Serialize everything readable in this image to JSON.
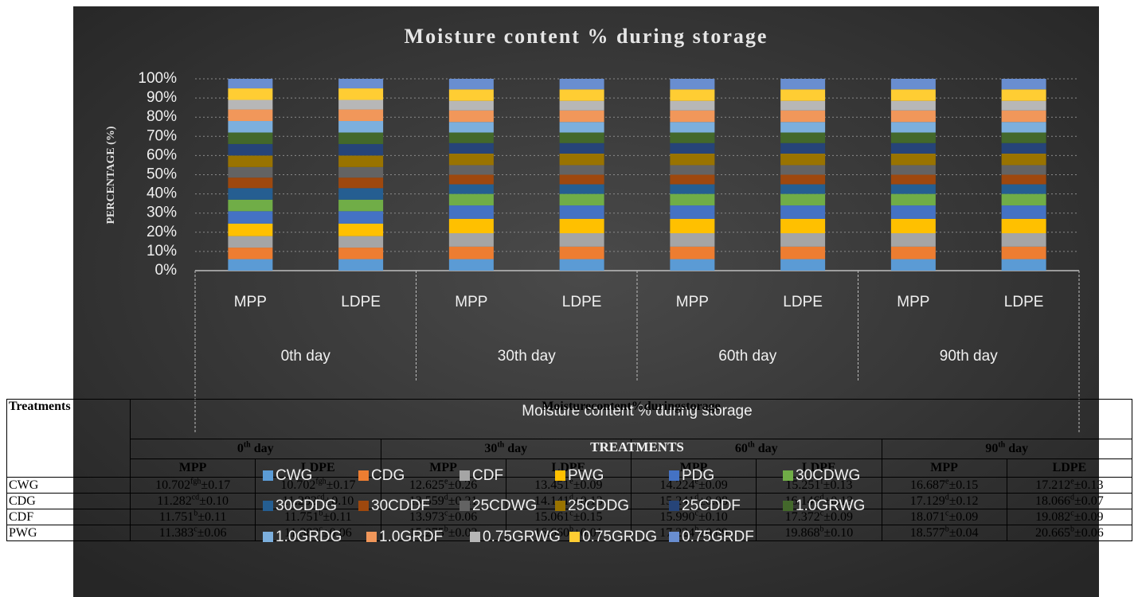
{
  "chart_data": {
    "type": "bar",
    "stacked": "percent",
    "title": "Moisture content % during storage",
    "y_label": "PERCENTAGE (%)",
    "x_label": "TREATMENTS",
    "outer_group": "Moisture content % during storage",
    "groups": [
      "0th day",
      "30th day",
      "60th day",
      "90th day"
    ],
    "categories": [
      "MPP",
      "LDPE",
      "MPP",
      "LDPE",
      "MPP",
      "LDPE",
      "MPP",
      "LDPE"
    ],
    "ylim": [
      0,
      100
    ],
    "yticks": [
      {
        "value": 0,
        "label": "0%"
      },
      {
        "value": 10,
        "label": "10%"
      },
      {
        "value": 20,
        "label": "20%"
      },
      {
        "value": 30,
        "label": "30%"
      },
      {
        "value": 40,
        "label": "40%"
      },
      {
        "value": 50,
        "label": "50%"
      },
      {
        "value": 60,
        "label": "60%"
      },
      {
        "value": 70,
        "label": "70%"
      },
      {
        "value": 80,
        "label": "80%"
      },
      {
        "value": 90,
        "label": "90%"
      },
      {
        "value": 100,
        "label": "100%"
      }
    ],
    "grid": true,
    "legend": "bottom",
    "series": [
      {
        "name": "CWG",
        "color": "#5b9bd5",
        "values": [
          6,
          6,
          6,
          6,
          6,
          6,
          6,
          6
        ]
      },
      {
        "name": "CDG",
        "color": "#ed7d31",
        "values": [
          6,
          6,
          6.5,
          6.5,
          6.5,
          6.5,
          6.5,
          6.5
        ]
      },
      {
        "name": "CDF",
        "color": "#a5a5a5",
        "values": [
          6,
          6,
          7,
          7,
          7,
          7,
          7,
          7
        ]
      },
      {
        "name": "PWG",
        "color": "#ffc000",
        "values": [
          6.5,
          6.5,
          7.5,
          7.5,
          7.5,
          7.5,
          7.5,
          7.5
        ]
      },
      {
        "name": "PDG",
        "color": "#4472c4",
        "values": [
          6.5,
          6.5,
          7,
          7,
          7,
          7,
          7,
          7
        ]
      },
      {
        "name": "30CDWG",
        "color": "#70ad47",
        "values": [
          6,
          6,
          6,
          6,
          6,
          6,
          6,
          6
        ]
      },
      {
        "name": "30CDDG",
        "color": "#255e91",
        "values": [
          6,
          6,
          5,
          5,
          5,
          5,
          5,
          5
        ]
      },
      {
        "name": "30CDDF",
        "color": "#9e480e",
        "values": [
          5.5,
          5.5,
          5,
          5,
          5,
          5,
          5,
          5
        ]
      },
      {
        "name": "25CDWG",
        "color": "#636363",
        "values": [
          5.5,
          5.5,
          5,
          5,
          5,
          5,
          5,
          5
        ]
      },
      {
        "name": "25CDDG",
        "color": "#997300",
        "values": [
          6,
          6,
          6,
          6,
          6,
          6,
          6,
          6
        ]
      },
      {
        "name": "25CDDF",
        "color": "#264478",
        "values": [
          6,
          6,
          5.5,
          5.5,
          5.5,
          5.5,
          5.5,
          5.5
        ]
      },
      {
        "name": "1.0GRWG",
        "color": "#43682b",
        "values": [
          6,
          6,
          5.5,
          5.5,
          5.5,
          5.5,
          5.5,
          5.5
        ]
      },
      {
        "name": "1.0GRDG",
        "color": "#7cafdd",
        "values": [
          6,
          6,
          5.5,
          5.5,
          5.5,
          5.5,
          5.5,
          5.5
        ]
      },
      {
        "name": "1.0GRDF",
        "color": "#f1975a",
        "values": [
          6,
          6,
          6,
          6,
          6,
          6,
          6,
          6
        ]
      },
      {
        "name": "0.75GRWG",
        "color": "#b7b7b7",
        "values": [
          5,
          5,
          5,
          5,
          5,
          5,
          5,
          5
        ]
      },
      {
        "name": "0.75GRDG",
        "color": "#ffcd33",
        "values": [
          6,
          6,
          6,
          6,
          6,
          6,
          6,
          6
        ]
      },
      {
        "name": "0.75GRDF",
        "color": "#698ed0",
        "values": [
          5,
          5,
          5.5,
          5.5,
          5.5,
          5.5,
          5.5,
          5.5
        ]
      }
    ]
  },
  "table": {
    "corner": "Treatments",
    "title": "Moisturecontent%duringstorage",
    "days": [
      {
        "num": "0",
        "sup": "th",
        "rest": "day"
      },
      {
        "num": "30",
        "sup": "th",
        "rest": "day"
      },
      {
        "num": "60",
        "sup": "th",
        "rest": "day"
      },
      {
        "num": "90",
        "sup": "th",
        "rest": "day"
      }
    ],
    "cols": [
      "MPP",
      "LDPE",
      "MPP",
      "LDPE",
      "MPP",
      "LDPE",
      "MPP",
      "LDPE"
    ],
    "rows": [
      {
        "label": "CWG",
        "cells": [
          [
            "10.702",
            "fgh",
            "±0.17"
          ],
          [
            "10.702",
            "fgh",
            "±0.17"
          ],
          [
            "12.625",
            "e",
            "±0.26"
          ],
          [
            "13.451",
            "e",
            "±0.09"
          ],
          [
            "14.224",
            "e",
            "±0.09"
          ],
          [
            "15.251",
            "f",
            "±0.13"
          ],
          [
            "16.687",
            "e",
            "±0.15"
          ],
          [
            "17.212",
            "e",
            "±0.13"
          ]
        ]
      },
      {
        "label": "CDG",
        "cells": [
          [
            "11.282",
            "cd",
            "±0.10"
          ],
          [
            "11.282",
            "cd",
            "±0.10"
          ],
          [
            "13.559",
            "d",
            "±0.21"
          ],
          [
            "14.141",
            "d",
            "±0.13"
          ],
          [
            "15.241",
            "d",
            "±0.08"
          ],
          [
            "16.146",
            "d",
            "±0.13"
          ],
          [
            "17.129",
            "d",
            "±0.12"
          ],
          [
            "18.066",
            "d",
            "±0.07"
          ]
        ]
      },
      {
        "label": "CDF",
        "cells": [
          [
            "11.751",
            "b",
            "±0.11"
          ],
          [
            "11.751",
            "b",
            "±0.11"
          ],
          [
            "13.973",
            "c",
            "±0.06"
          ],
          [
            "15.061",
            "c",
            "±0.15"
          ],
          [
            "15.990",
            "c",
            "±0.10"
          ],
          [
            "17.372",
            "c",
            "±0.09"
          ],
          [
            "18.071",
            "c",
            "±0.09"
          ],
          [
            "19.082",
            "c",
            "±0.09"
          ]
        ]
      },
      {
        "label": "PWG",
        "cells": [
          [
            "11.383",
            "c",
            "±0.06"
          ],
          [
            "11.383",
            "c",
            "±0.06"
          ],
          [
            "15.275",
            "b",
            "±0.02"
          ],
          [
            "16.660",
            "b",
            "±0.01"
          ],
          [
            "17.224",
            "b",
            "±0.09"
          ],
          [
            "19.868",
            "b",
            "±0.10"
          ],
          [
            "18.577",
            "b",
            "±0.04"
          ],
          [
            "20.665",
            "b",
            "±0.06"
          ]
        ]
      }
    ]
  }
}
